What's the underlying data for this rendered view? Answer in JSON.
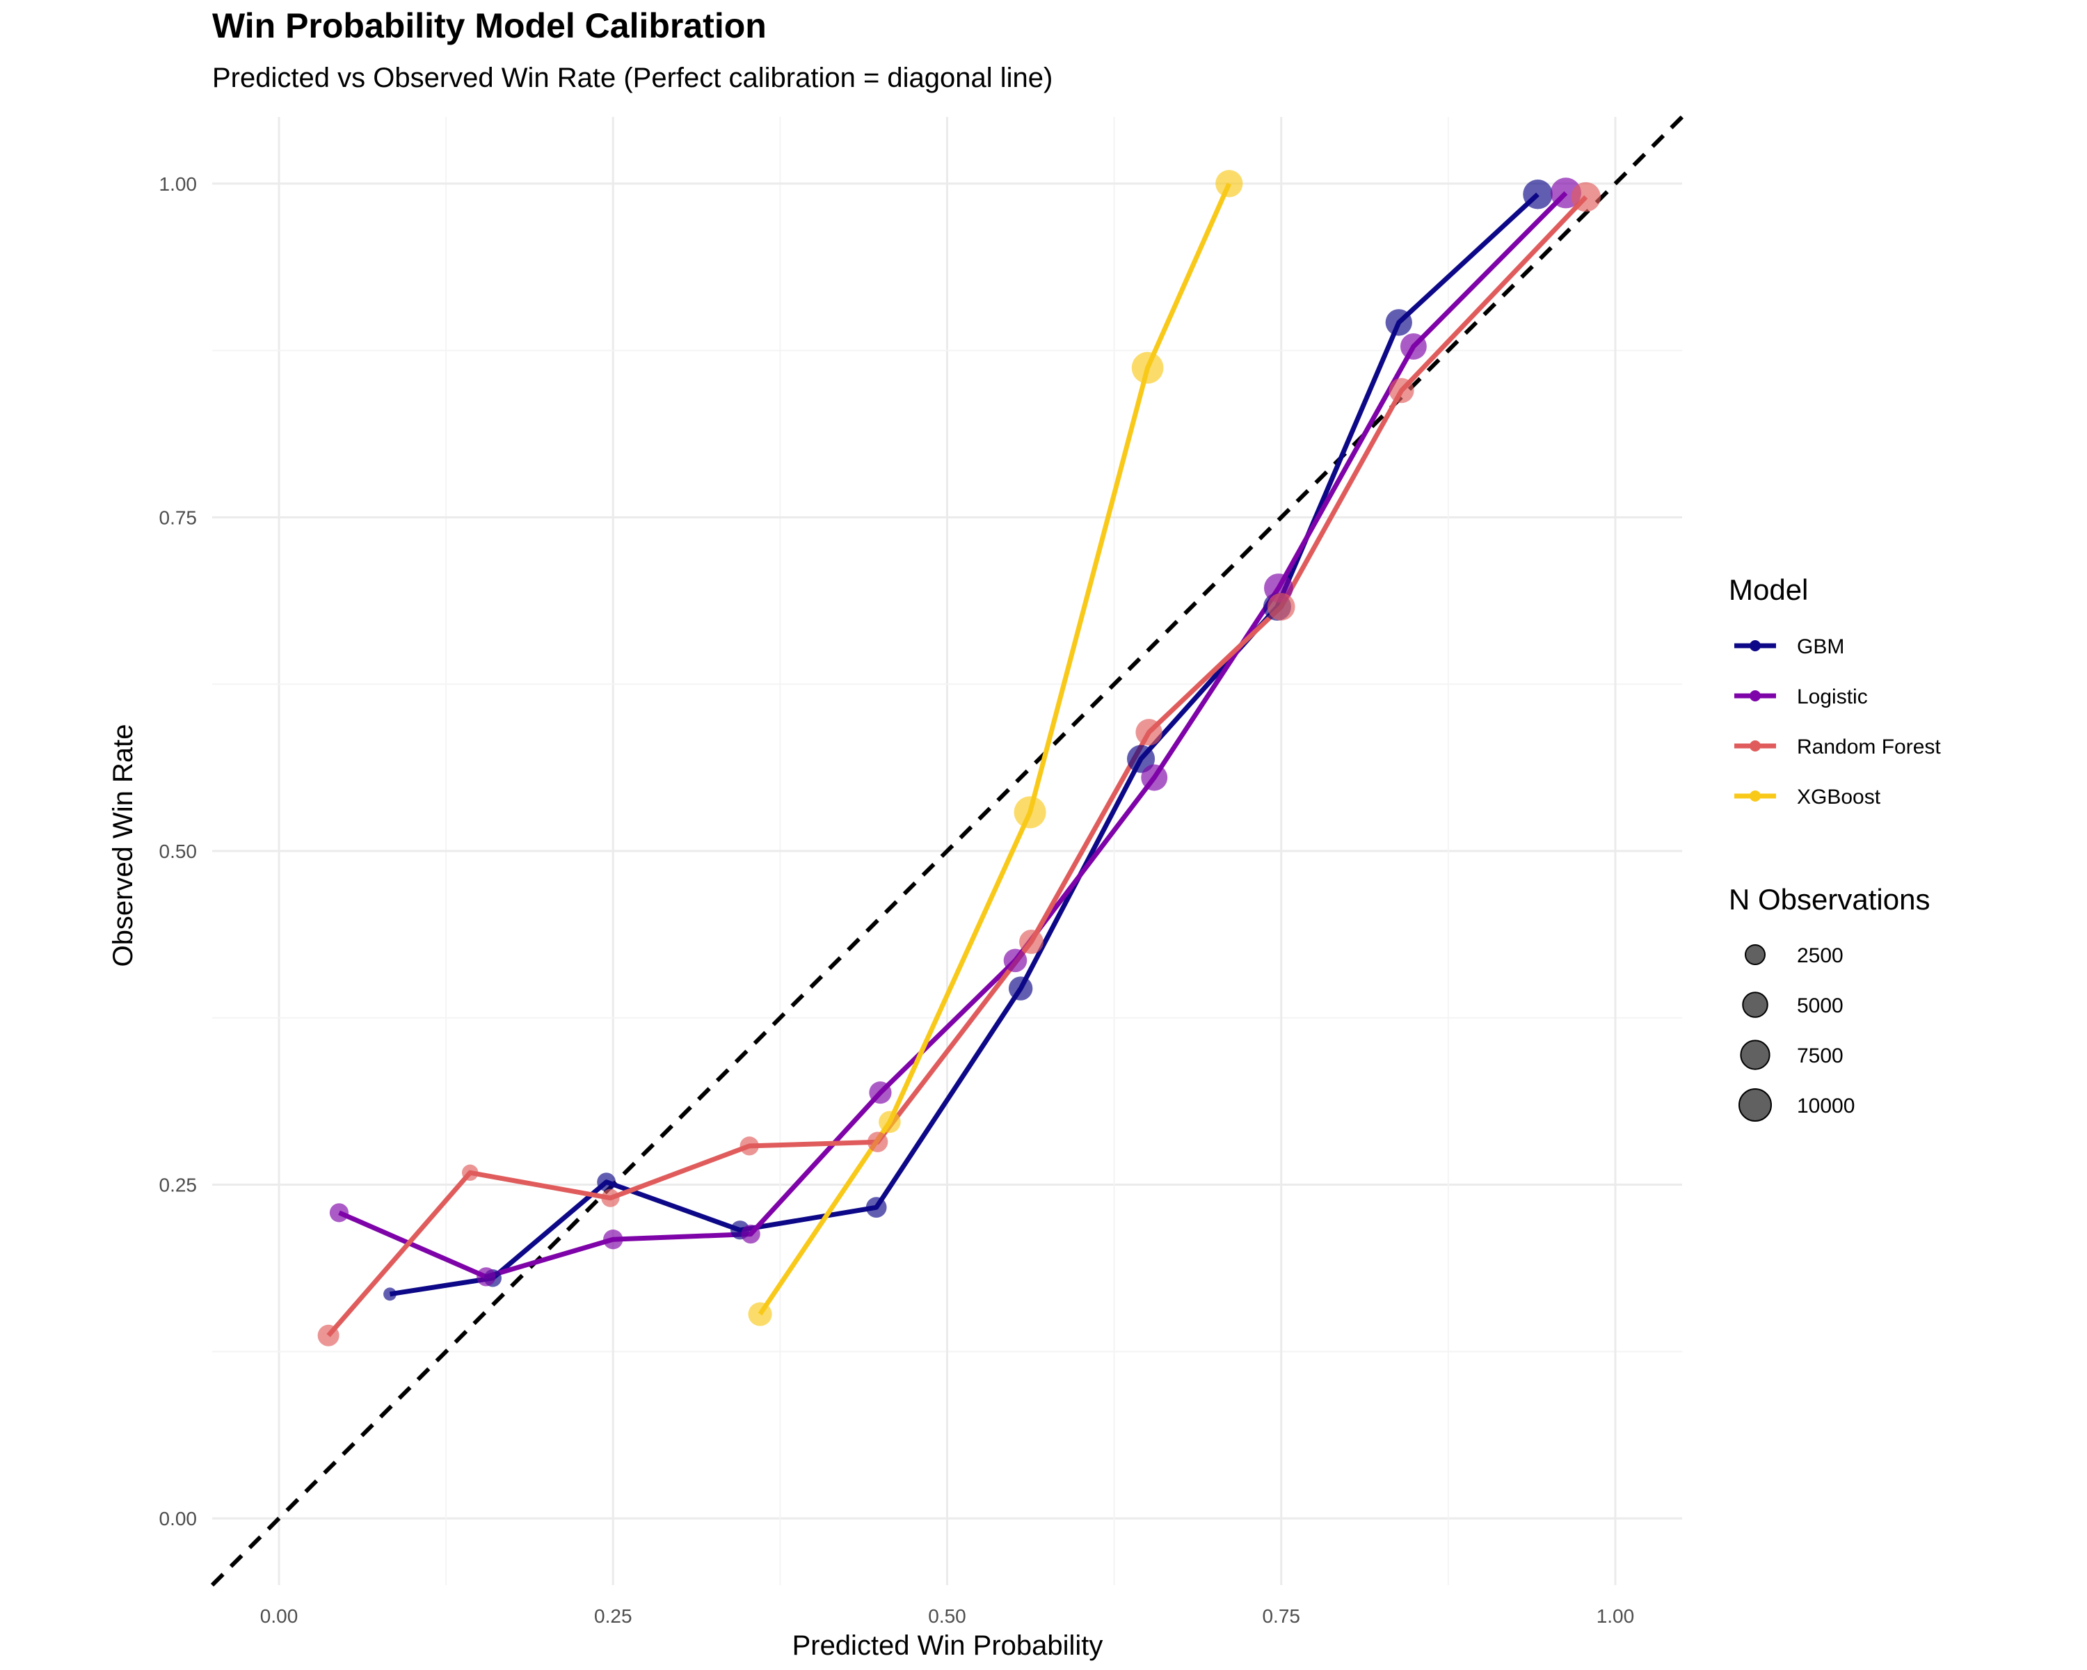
{
  "title": "Win Probability Model Calibration",
  "subtitle": "Predicted vs Observed Win Rate (Perfect calibration = diagonal line)",
  "chart_data": {
    "type": "line",
    "title": "Win Probability Model Calibration",
    "subtitle": "Predicted vs Observed Win Rate (Perfect calibration = diagonal line)",
    "xlabel": "Predicted Win Probability",
    "ylabel": "Observed Win Rate",
    "xlim": [
      -0.05,
      1.05
    ],
    "ylim": [
      -0.05,
      1.05
    ],
    "x_ticks": [
      "0.00",
      "0.25",
      "0.50",
      "0.75",
      "1.00"
    ],
    "y_ticks": [
      "0.00",
      "0.25",
      "0.50",
      "0.75",
      "1.00"
    ],
    "grid": true,
    "reference_line": {
      "from": [
        0,
        0
      ],
      "to": [
        1,
        1
      ],
      "style": "dashed",
      "color": "#000000"
    },
    "legend_position": "right",
    "color_legend_title": "Model",
    "size_legend_title": "N Observations",
    "size_legend": [
      {
        "label": "2500",
        "n": 2500
      },
      {
        "label": "5000",
        "n": 5000
      },
      {
        "label": "7500",
        "n": 7500
      },
      {
        "label": "10000",
        "n": 10000
      }
    ],
    "series": [
      {
        "name": "GBM",
        "color": "#0d0887",
        "points": [
          {
            "x": 0.083,
            "y": 0.168,
            "n": 600
          },
          {
            "x": 0.16,
            "y": 0.18,
            "n": 1800
          },
          {
            "x": 0.245,
            "y": 0.252,
            "n": 2200
          },
          {
            "x": 0.345,
            "y": 0.216,
            "n": 2300
          },
          {
            "x": 0.447,
            "y": 0.233,
            "n": 3000
          },
          {
            "x": 0.555,
            "y": 0.397,
            "n": 4600
          },
          {
            "x": 0.645,
            "y": 0.569,
            "n": 7000
          },
          {
            "x": 0.747,
            "y": 0.683,
            "n": 7000
          },
          {
            "x": 0.838,
            "y": 0.896,
            "n": 6200
          },
          {
            "x": 0.942,
            "y": 0.992,
            "n": 8200
          }
        ]
      },
      {
        "name": "Logistic",
        "color": "#7e03a8",
        "points": [
          {
            "x": 0.045,
            "y": 0.229,
            "n": 2300
          },
          {
            "x": 0.155,
            "y": 0.181,
            "n": 2300
          },
          {
            "x": 0.25,
            "y": 0.209,
            "n": 2600
          },
          {
            "x": 0.353,
            "y": 0.213,
            "n": 2300
          },
          {
            "x": 0.45,
            "y": 0.319,
            "n": 3800
          },
          {
            "x": 0.551,
            "y": 0.418,
            "n": 4300
          },
          {
            "x": 0.655,
            "y": 0.555,
            "n": 6000
          },
          {
            "x": 0.748,
            "y": 0.697,
            "n": 7800
          },
          {
            "x": 0.849,
            "y": 0.878,
            "n": 6000
          },
          {
            "x": 0.963,
            "y": 0.993,
            "n": 9000
          }
        ]
      },
      {
        "name": "Random Forest",
        "color": "#e05c5c",
        "points": [
          {
            "x": 0.037,
            "y": 0.137,
            "n": 3400
          },
          {
            "x": 0.143,
            "y": 0.259,
            "n": 1400
          },
          {
            "x": 0.248,
            "y": 0.24,
            "n": 2000
          },
          {
            "x": 0.352,
            "y": 0.279,
            "n": 2300
          },
          {
            "x": 0.448,
            "y": 0.282,
            "n": 2900
          },
          {
            "x": 0.563,
            "y": 0.432,
            "n": 4800
          },
          {
            "x": 0.651,
            "y": 0.589,
            "n": 6200
          },
          {
            "x": 0.75,
            "y": 0.683,
            "n": 6800
          },
          {
            "x": 0.84,
            "y": 0.845,
            "n": 5200
          },
          {
            "x": 0.978,
            "y": 0.99,
            "n": 8200
          }
        ]
      },
      {
        "name": "XGBoost",
        "color": "#f9c91a",
        "points": [
          {
            "x": 0.36,
            "y": 0.153,
            "n": 4500
          },
          {
            "x": 0.457,
            "y": 0.297,
            "n": 3600
          },
          {
            "x": 0.562,
            "y": 0.529,
            "n": 10000
          },
          {
            "x": 0.65,
            "y": 0.862,
            "n": 9800
          },
          {
            "x": 0.711,
            "y": 1.0,
            "n": 6600
          }
        ]
      }
    ]
  }
}
